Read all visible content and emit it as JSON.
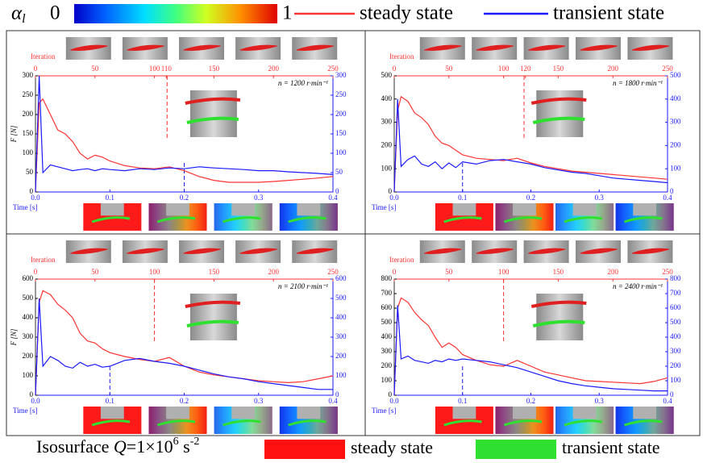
{
  "legend": {
    "symbol": "α",
    "subscript": "l",
    "colorbar_min": 0,
    "colorbar_max": 1,
    "steady": "steady state",
    "transient": "transient state"
  },
  "footer": {
    "label": "Isosurface",
    "q": "Q",
    "eq": "=1×10",
    "exp": "6",
    "unit": " s",
    "unit_exp": "-2",
    "steady": "steady state",
    "transient": "transient state"
  },
  "chart_data": [
    {
      "type": "line",
      "annotation": "n = 1200 r·min⁻¹",
      "xlabel": "Time [s]",
      "ylabel": "F [N]",
      "x2label": "Iteration",
      "xlim": [
        0,
        0.4
      ],
      "xticks": [
        {
          "value": 0,
          "label": "0.0"
        },
        0.1,
        0.2,
        0.3,
        0.4
      ],
      "x2lim": [
        0,
        250
      ],
      "x2ticks": [
        0,
        50,
        100,
        110,
        150,
        200,
        250
      ],
      "ylim": [
        0,
        300
      ],
      "yticks": [
        0,
        50,
        100,
        150,
        200,
        250,
        300
      ],
      "x": [
        0,
        0.005,
        0.01,
        0.02,
        0.03,
        0.04,
        0.05,
        0.06,
        0.07,
        0.08,
        0.09,
        0.1,
        0.12,
        0.14,
        0.16,
        0.18,
        0.2,
        0.22,
        0.24,
        0.26,
        0.28,
        0.3,
        0.32,
        0.34,
        0.36,
        0.38,
        0.4
      ],
      "series": [
        {
          "color": "#ff3333",
          "values": [
            0,
            230,
            240,
            200,
            160,
            150,
            130,
            100,
            85,
            95,
            90,
            80,
            68,
            62,
            60,
            65,
            55,
            40,
            30,
            25,
            25,
            25,
            27,
            30,
            33,
            36,
            40
          ]
        },
        {
          "color": "#1a1aff",
          "values": [
            0,
            300,
            50,
            70,
            65,
            60,
            55,
            58,
            60,
            55,
            60,
            58,
            55,
            60,
            58,
            62,
            60,
            65,
            62,
            60,
            58,
            55,
            55,
            52,
            50,
            48,
            45
          ]
        }
      ],
      "vlines": [
        {
          "x": 0.177,
          "color": "#ff3333"
        },
        {
          "x": 0.2,
          "color": "#1a1aff"
        }
      ]
    },
    {
      "type": "line",
      "annotation": "n = 1800 r·min⁻¹",
      "xlabel": "Time [s]",
      "x2label": "Iteration",
      "xlim": [
        0,
        0.4
      ],
      "xticks": [
        {
          "value": 0,
          "label": "0.0"
        },
        0.1,
        0.2,
        0.3,
        0.4
      ],
      "x2lim": [
        0,
        250
      ],
      "x2ticks": [
        0,
        50,
        100,
        120,
        150,
        200,
        250
      ],
      "ylim": [
        0,
        500
      ],
      "yticks": [
        0,
        100,
        200,
        300,
        400,
        500
      ],
      "x": [
        0,
        0.005,
        0.01,
        0.02,
        0.03,
        0.04,
        0.05,
        0.06,
        0.07,
        0.08,
        0.09,
        0.1,
        0.12,
        0.14,
        0.16,
        0.18,
        0.2,
        0.22,
        0.24,
        0.26,
        0.28,
        0.3,
        0.32,
        0.34,
        0.36,
        0.38,
        0.4
      ],
      "series": [
        {
          "color": "#ff3333",
          "values": [
            0,
            350,
            410,
            390,
            340,
            320,
            290,
            240,
            210,
            200,
            180,
            160,
            145,
            140,
            135,
            145,
            125,
            110,
            100,
            90,
            85,
            80,
            75,
            70,
            65,
            60,
            55
          ]
        },
        {
          "color": "#1a1aff",
          "values": [
            0,
            400,
            110,
            140,
            155,
            120,
            110,
            130,
            100,
            125,
            105,
            130,
            120,
            135,
            140,
            130,
            120,
            105,
            95,
            85,
            80,
            70,
            60,
            55,
            50,
            45,
            40
          ]
        }
      ],
      "vlines": [
        {
          "x": 0.19,
          "color": "#ff3333"
        },
        {
          "x": 0.1,
          "color": "#1a1aff"
        }
      ]
    },
    {
      "type": "line",
      "annotation": "n = 2100 r·min⁻¹",
      "xlabel": "Time [s]",
      "ylabel": "F [N]",
      "x2label": "Iteration",
      "xlim": [
        0,
        0.4
      ],
      "xticks": [
        {
          "value": 0,
          "label": "0.0"
        },
        0.1,
        0.2,
        0.3,
        0.4
      ],
      "x2lim": [
        0,
        250
      ],
      "x2ticks": [
        0,
        50,
        100,
        150,
        200,
        250
      ],
      "ylim": [
        0,
        600
      ],
      "yticks": [
        0,
        100,
        200,
        300,
        400,
        500,
        600
      ],
      "x": [
        0,
        0.005,
        0.01,
        0.02,
        0.03,
        0.04,
        0.05,
        0.06,
        0.07,
        0.08,
        0.09,
        0.1,
        0.12,
        0.14,
        0.16,
        0.18,
        0.2,
        0.22,
        0.24,
        0.26,
        0.28,
        0.3,
        0.32,
        0.34,
        0.36,
        0.38,
        0.4
      ],
      "series": [
        {
          "color": "#ff3333",
          "values": [
            0,
            480,
            540,
            520,
            470,
            440,
            400,
            320,
            280,
            270,
            240,
            220,
            200,
            185,
            175,
            195,
            150,
            120,
            105,
            95,
            85,
            75,
            70,
            65,
            70,
            85,
            100
          ]
        },
        {
          "color": "#1a1aff",
          "values": [
            0,
            500,
            150,
            200,
            180,
            150,
            140,
            170,
            150,
            160,
            145,
            150,
            180,
            190,
            175,
            165,
            150,
            130,
            110,
            95,
            85,
            70,
            60,
            50,
            40,
            30,
            30
          ]
        }
      ],
      "vlines": [
        {
          "x": 0.16,
          "color": "#ff3333"
        },
        {
          "x": 0.1,
          "color": "#1a1aff"
        }
      ]
    },
    {
      "type": "line",
      "annotation": "n = 2400 r·min⁻¹",
      "xlabel": "Time [s]",
      "x2label": "Iteration",
      "xlim": [
        0,
        0.4
      ],
      "xticks": [
        {
          "value": 0,
          "label": "0.0"
        },
        0.1,
        0.2,
        0.3,
        0.4
      ],
      "x2lim": [
        0,
        250
      ],
      "x2ticks": [
        0,
        50,
        100,
        150,
        200,
        250
      ],
      "ylim": [
        0,
        800
      ],
      "yticks": [
        0,
        100,
        200,
        300,
        400,
        500,
        600,
        700,
        800
      ],
      "x": [
        0,
        0.005,
        0.01,
        0.02,
        0.03,
        0.04,
        0.05,
        0.06,
        0.07,
        0.08,
        0.09,
        0.1,
        0.12,
        0.14,
        0.16,
        0.18,
        0.2,
        0.22,
        0.24,
        0.26,
        0.28,
        0.3,
        0.32,
        0.34,
        0.36,
        0.38,
        0.4
      ],
      "series": [
        {
          "color": "#ff3333",
          "values": [
            0,
            600,
            670,
            640,
            570,
            520,
            480,
            400,
            330,
            360,
            330,
            280,
            240,
            210,
            200,
            240,
            200,
            160,
            140,
            120,
            100,
            95,
            90,
            85,
            80,
            95,
            120
          ]
        },
        {
          "color": "#1a1aff",
          "values": [
            0,
            620,
            250,
            270,
            240,
            230,
            220,
            240,
            230,
            250,
            240,
            250,
            240,
            230,
            210,
            190,
            160,
            130,
            100,
            80,
            65,
            55,
            45,
            40,
            35,
            30,
            30
          ]
        }
      ],
      "vlines": [
        {
          "x": 0.16,
          "color": "#ff3333"
        },
        {
          "x": 0.1,
          "color": "#1a1aff"
        }
      ]
    }
  ]
}
